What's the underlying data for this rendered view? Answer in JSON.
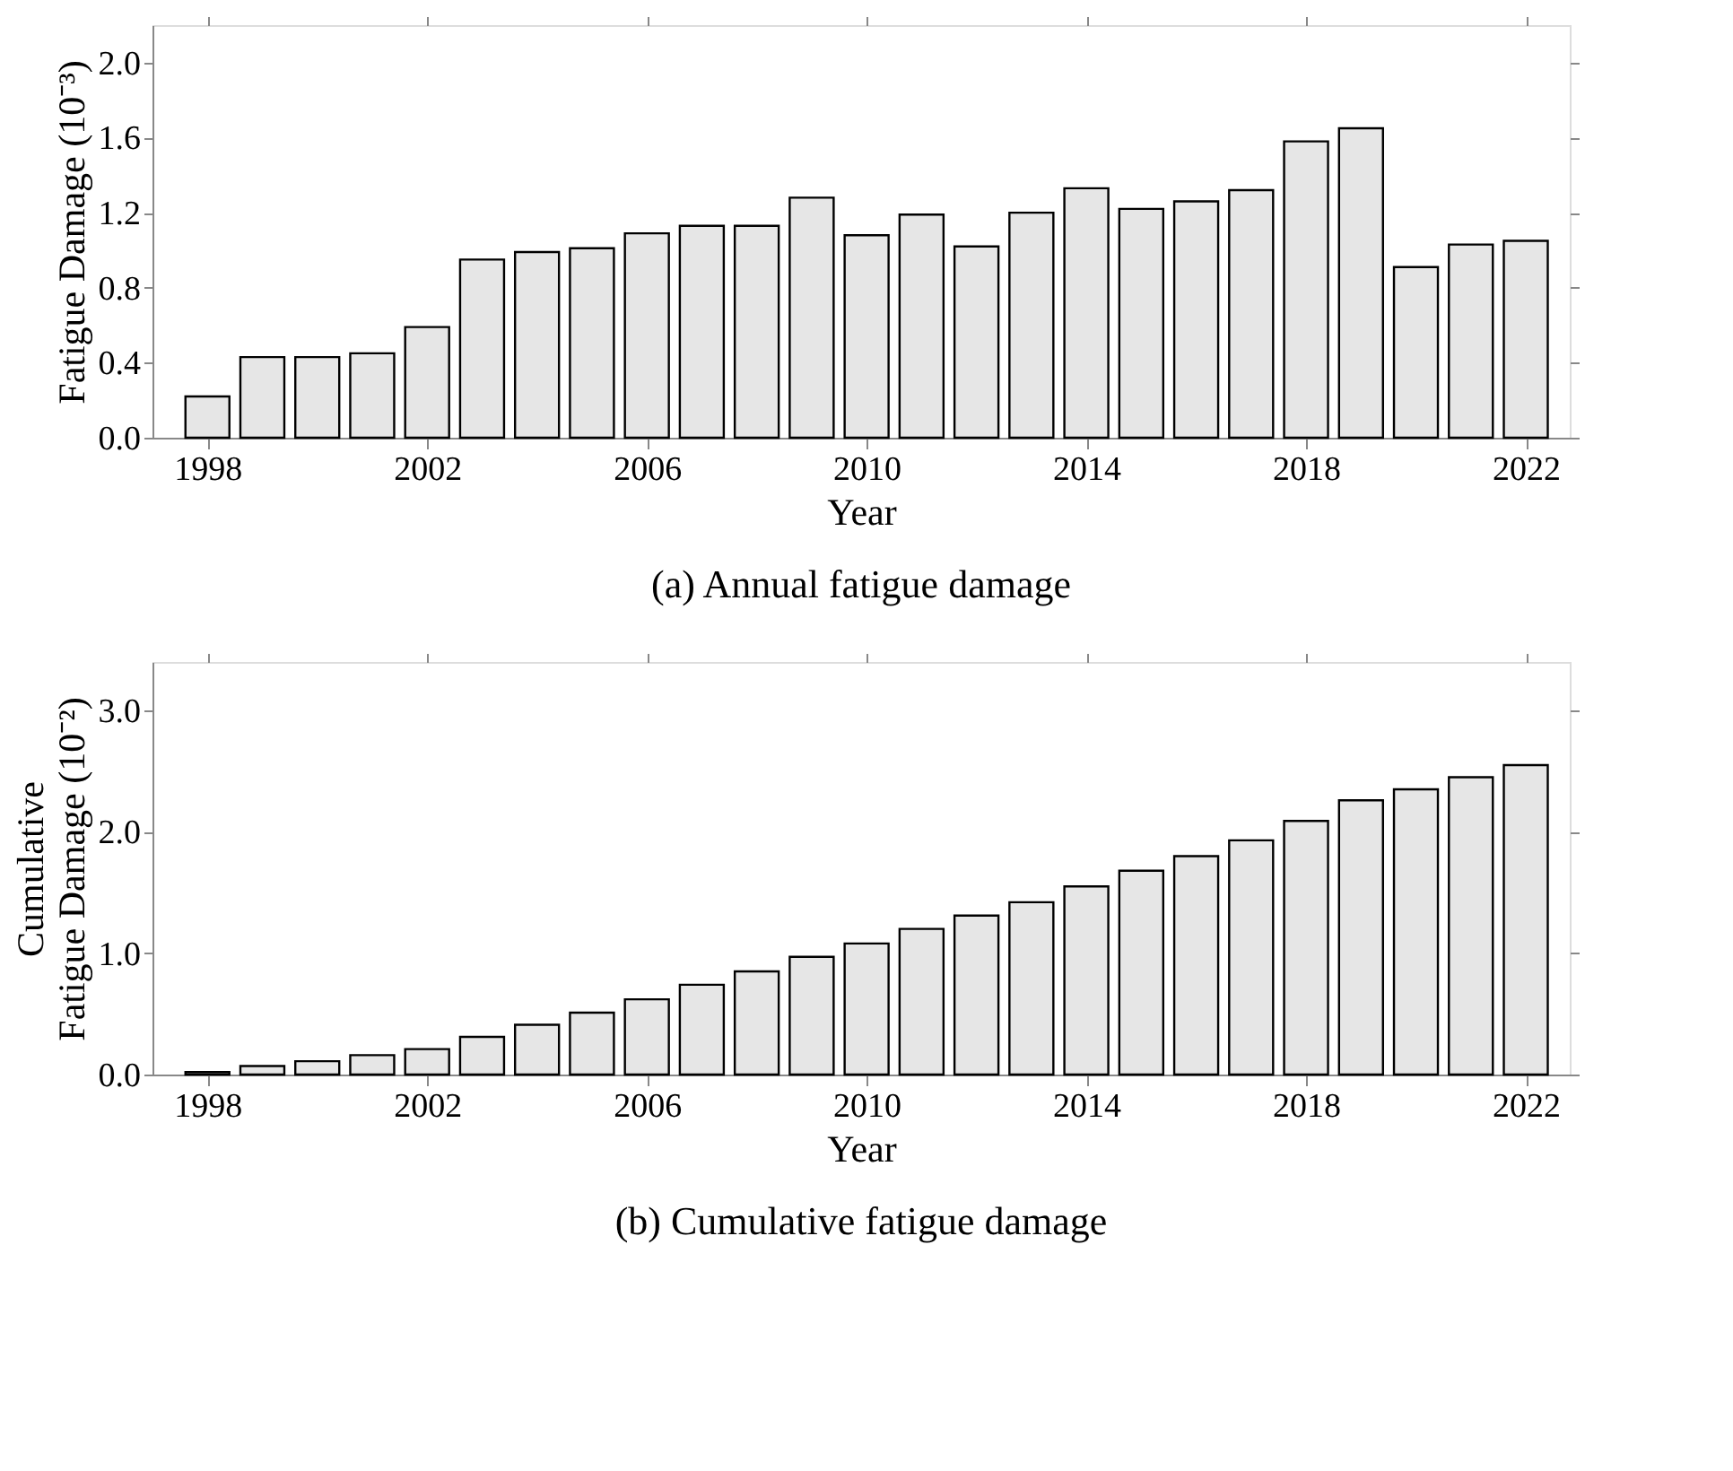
{
  "chart_data": [
    {
      "type": "bar",
      "title": "(a)  Annual fatigue damage",
      "xlabel": "Year",
      "ylabel": "Fatigue Damage (10⁻³)",
      "x": [
        1998,
        1999,
        2000,
        2001,
        2002,
        2003,
        2004,
        2005,
        2006,
        2007,
        2008,
        2009,
        2010,
        2011,
        2012,
        2013,
        2014,
        2015,
        2016,
        2017,
        2018,
        2019,
        2020,
        2021,
        2022
      ],
      "values": [
        0.22,
        0.43,
        0.43,
        0.45,
        0.59,
        0.95,
        0.99,
        1.01,
        1.09,
        1.13,
        1.13,
        1.28,
        1.08,
        1.19,
        1.02,
        1.2,
        1.33,
        1.22,
        1.26,
        1.32,
        1.58,
        1.65,
        0.91,
        1.03,
        1.05
      ],
      "color": "#e6e6e6",
      "xlim": [
        1997,
        2022.8
      ],
      "xticks": [
        1998,
        2002,
        2006,
        2010,
        2014,
        2018,
        2022
      ],
      "ylim": [
        0,
        2.2
      ],
      "yticks": [
        {
          "value": 0,
          "label": "0.0"
        },
        {
          "value": 0.4,
          "label": "0.4"
        },
        {
          "value": 0.8,
          "label": "0.8"
        },
        {
          "value": 1.2,
          "label": "1.2"
        },
        {
          "value": 1.6,
          "label": "1.6"
        },
        {
          "value": 2.0,
          "label": "2.0"
        }
      ],
      "grid": false
    },
    {
      "type": "bar",
      "title": "(b)  Cumulative fatigue damage",
      "xlabel": "Year",
      "ylabel": "Cumulative\nFatigue Damage (10⁻²)",
      "x": [
        1998,
        1999,
        2000,
        2001,
        2002,
        2003,
        2004,
        2005,
        2006,
        2007,
        2008,
        2009,
        2010,
        2011,
        2012,
        2013,
        2014,
        2015,
        2016,
        2017,
        2018,
        2019,
        2020,
        2021,
        2022
      ],
      "values": [
        0.02,
        0.07,
        0.11,
        0.16,
        0.21,
        0.31,
        0.41,
        0.51,
        0.62,
        0.74,
        0.85,
        0.97,
        1.08,
        1.2,
        1.31,
        1.42,
        1.55,
        1.68,
        1.8,
        1.93,
        2.09,
        2.26,
        2.35,
        2.45,
        2.55
      ],
      "color": "#e6e6e6",
      "xlim": [
        1997,
        2022.8
      ],
      "xticks": [
        1998,
        2002,
        2006,
        2010,
        2014,
        2018,
        2022
      ],
      "ylim": [
        0,
        3.4
      ],
      "yticks": [
        {
          "value": 0,
          "label": "0.0"
        },
        {
          "value": 1.0,
          "label": "1.0"
        },
        {
          "value": 2.0,
          "label": "2.0"
        },
        {
          "value": 3.0,
          "label": "3.0"
        }
      ],
      "grid": false
    }
  ]
}
